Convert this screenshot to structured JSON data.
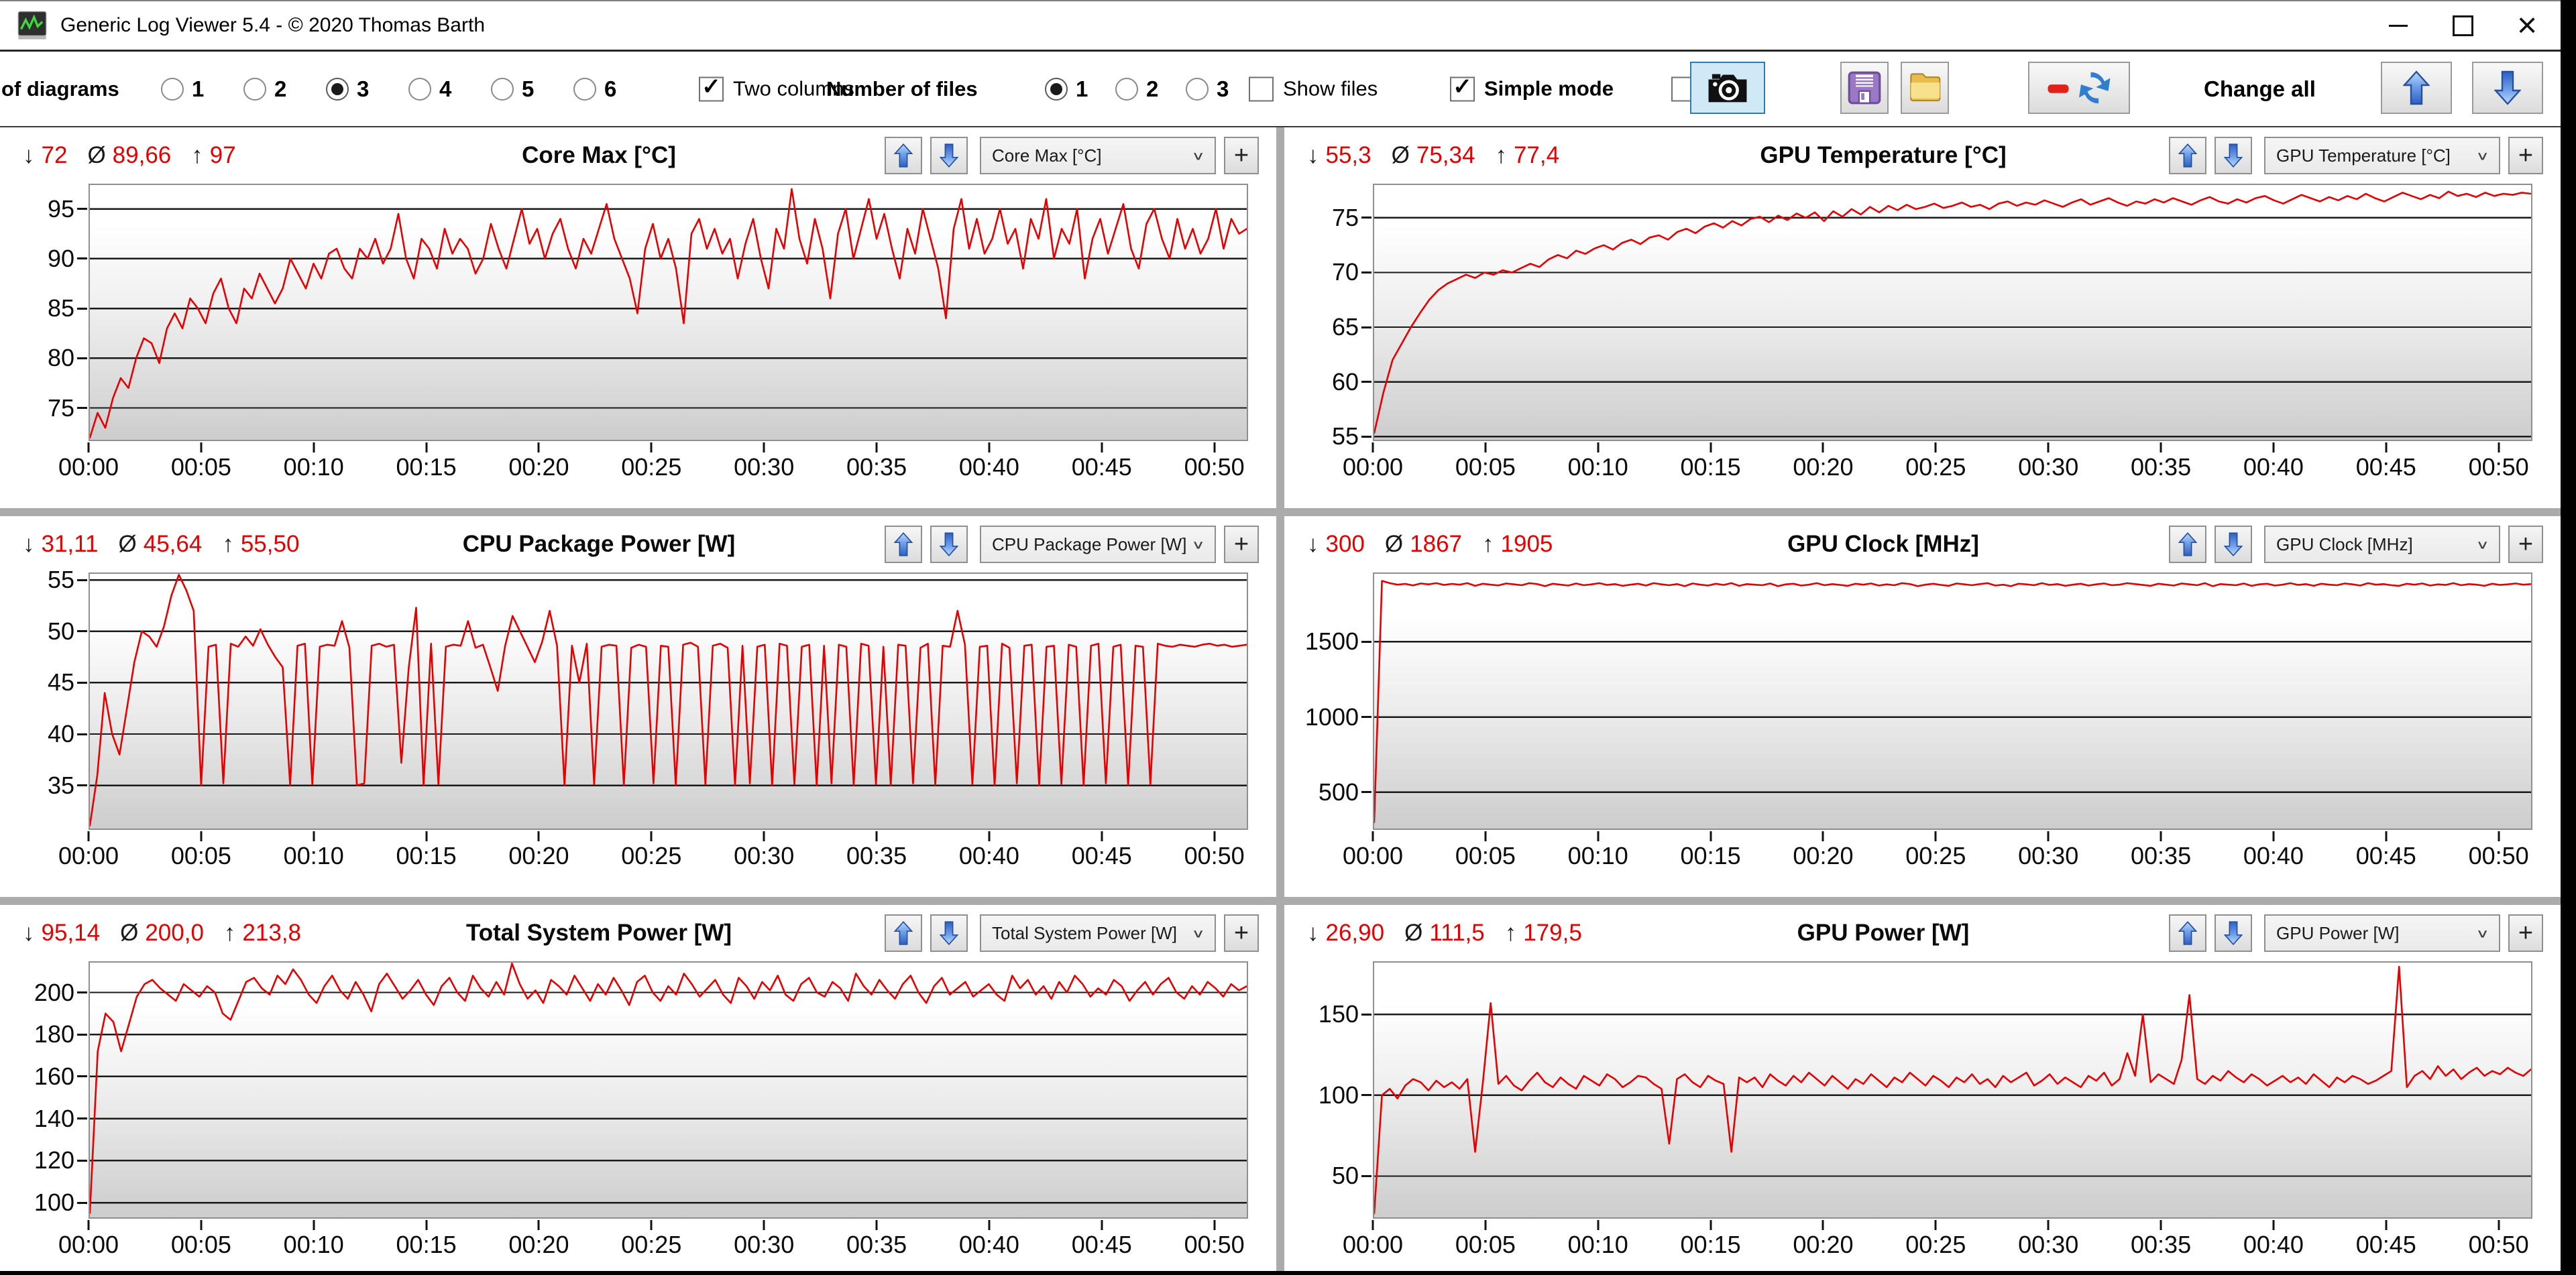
{
  "window": {
    "title": "Generic Log Viewer 5.4 - © 2020 Thomas Barth"
  },
  "glyphs": {
    "min_arrow": "↓",
    "avg": "Ø",
    "max_arrow": "↑",
    "chevron": "∨",
    "plus": "+",
    "check": "✓",
    "close": "×"
  },
  "colors": {
    "series": "#e60000",
    "stats_value": "#e60000",
    "grid": "#1a1a1a",
    "accent_blue": "#3468cf",
    "camera_button_bg": "#cfe9f7",
    "divider": "#ababab"
  },
  "toolbar": {
    "diagrams_label": "of diagrams",
    "diagram_options": [
      "1",
      "2",
      "3",
      "4",
      "5",
      "6"
    ],
    "diagrams_selected": "3",
    "two_columns_label": "Two columns",
    "two_columns_checked": true,
    "files_label": "Number of files",
    "file_options": [
      "1",
      "2",
      "3"
    ],
    "files_selected": "1",
    "show_files_label": "Show files",
    "show_files_checked": false,
    "simple_mode_label": "Simple mode",
    "simple_mode_checked": true,
    "camera_checkbox_checked": false,
    "change_all_label": "Change all"
  },
  "x_axis": {
    "ticks": [
      "00:00",
      "00:05",
      "00:10",
      "00:15",
      "00:20",
      "00:25",
      "00:30",
      "00:35",
      "00:40",
      "00:45",
      "00:50"
    ],
    "tick_minutes": [
      0,
      5,
      10,
      15,
      20,
      25,
      30,
      35,
      40,
      45,
      50
    ],
    "max_minutes": 51.5
  },
  "charts": [
    {
      "id": "core-max",
      "type": "line",
      "title": "Core Max [°C]",
      "channel": "Core Max [°C]",
      "stat_min": "72",
      "stat_avg": "89,66",
      "stat_max": "97",
      "ymin": 71.8,
      "ymax": 97.4,
      "yticks": [
        95,
        90,
        85,
        80,
        75
      ],
      "values": [
        72,
        74.5,
        73,
        76,
        78,
        77,
        80,
        82,
        81.5,
        79.5,
        83,
        84.5,
        83,
        86,
        85,
        83.5,
        86.5,
        88,
        85,
        83.5,
        87,
        86,
        88.5,
        87,
        85.5,
        87,
        90,
        88.5,
        87,
        89.5,
        88,
        90.5,
        91,
        89,
        88,
        91,
        90,
        92,
        89.5,
        91,
        94.5,
        90,
        88,
        92,
        91,
        89,
        93,
        90.5,
        92,
        91,
        88.5,
        90,
        93.5,
        91,
        89,
        92,
        95,
        91.5,
        93,
        90,
        92.5,
        94,
        91,
        89,
        92,
        90.5,
        93,
        95.5,
        92,
        90,
        88,
        84.5,
        91,
        93.5,
        90,
        92,
        89,
        83.5,
        92.5,
        94,
        91,
        93,
        90.5,
        92,
        88,
        91.5,
        94,
        90,
        87,
        93,
        91,
        97,
        92,
        89.5,
        94,
        91,
        86,
        92.5,
        95,
        90,
        93,
        96,
        92,
        94.5,
        91,
        88,
        93,
        90.5,
        95,
        92,
        89,
        84,
        93,
        96,
        91,
        94,
        90.5,
        92,
        95,
        91.5,
        93,
        89,
        94,
        92,
        96,
        90,
        93,
        91.5,
        95,
        88,
        92,
        94,
        90.5,
        93,
        95.5,
        91,
        89,
        93.5,
        95,
        92,
        90,
        94,
        91,
        93,
        90.5,
        92,
        95,
        91,
        94,
        92.5,
        93
      ]
    },
    {
      "id": "gpu-temperature",
      "type": "line",
      "title": "GPU Temperature [°C]",
      "channel": "GPU Temperature [°C]",
      "stat_min": "55,3",
      "stat_avg": "75,34",
      "stat_max": "77,4",
      "ymin": 54.7,
      "ymax": 78.0,
      "yticks": [
        75,
        70,
        65,
        60,
        55
      ],
      "values": [
        55.3,
        59,
        62,
        63.5,
        65,
        66.3,
        67.5,
        68.4,
        69,
        69.4,
        69.8,
        69.5,
        70,
        69.8,
        70.2,
        70,
        70.4,
        70.8,
        70.5,
        71.2,
        71.6,
        71.3,
        72,
        71.7,
        72.2,
        72.5,
        72.1,
        72.7,
        73,
        72.6,
        73.2,
        73.4,
        73,
        73.7,
        74,
        73.6,
        74.2,
        74.5,
        74.1,
        74.7,
        74.3,
        74.9,
        75.1,
        74.6,
        75.2,
        74.8,
        75.4,
        75,
        75.5,
        74.7,
        75.6,
        75.1,
        75.8,
        75.3,
        76,
        75.5,
        76.1,
        75.7,
        76.2,
        75.8,
        76,
        76.3,
        75.9,
        76.1,
        76.4,
        76,
        76.2,
        75.8,
        76.3,
        76.5,
        76.1,
        76.4,
        76.2,
        76.6,
        76.3,
        76,
        76.4,
        76.7,
        76.2,
        76.5,
        76.8,
        76.4,
        76.1,
        76.5,
        76.3,
        76.7,
        76.4,
        76.8,
        76.5,
        76.2,
        76.6,
        76.9,
        76.5,
        76.3,
        76.7,
        76.4,
        76.8,
        77,
        76.6,
        76.3,
        76.7,
        77.1,
        76.8,
        76.5,
        76.9,
        76.6,
        77,
        76.7,
        77.2,
        76.8,
        76.5,
        76.9,
        77.3,
        77,
        76.7,
        77.1,
        76.8,
        77.4,
        77,
        77.2,
        76.9,
        77.3,
        77,
        77.2,
        77.1,
        77.3,
        77.2
      ]
    },
    {
      "id": "cpu-package-power",
      "type": "line",
      "title": "CPU Package Power [W]",
      "channel": "CPU Package Power [W]",
      "stat_min": "31,11",
      "stat_avg": "45,64",
      "stat_max": "55,50",
      "ymin": 30.8,
      "ymax": 55.6,
      "yticks": [
        55,
        50,
        45,
        40,
        35
      ],
      "values": [
        31.1,
        36,
        44,
        40,
        38,
        42.5,
        47,
        50,
        49.5,
        48.5,
        50.5,
        53.5,
        55.5,
        54,
        52,
        35,
        48.5,
        48.7,
        35.2,
        48.8,
        48.5,
        49.5,
        48.6,
        50.2,
        48.7,
        47.5,
        46.5,
        35,
        48.6,
        48.8,
        35.1,
        48.5,
        48.7,
        48.6,
        51,
        48.4,
        35,
        35.2,
        48.6,
        48.8,
        48.5,
        48.7,
        37.2,
        46.5,
        52.3,
        35,
        48.8,
        35.1,
        48.5,
        48.7,
        48.6,
        51,
        48.4,
        48.7,
        46.5,
        44.2,
        48.6,
        51.5,
        50,
        48.5,
        47,
        49,
        52,
        48.6,
        35,
        48.6,
        45,
        48.8,
        35.1,
        48.5,
        48.7,
        48.6,
        35,
        48.4,
        48.7,
        48.5,
        35.2,
        48.6,
        48.5,
        35,
        48.7,
        48.9,
        48.5,
        35.1,
        48.6,
        48.8,
        48.4,
        35,
        48.6,
        35.2,
        48.5,
        48.7,
        35,
        48.8,
        48.6,
        35.1,
        48.5,
        48.7,
        35,
        48.6,
        35.2,
        48.7,
        48.5,
        35,
        48.8,
        48.6,
        35.1,
        48.5,
        35,
        48.7,
        48.6,
        35.2,
        48.4,
        48.8,
        35,
        48.6,
        48.5,
        52,
        48.7,
        35.1,
        48.5,
        48.6,
        35,
        48.8,
        48.4,
        35.2,
        48.6,
        48.7,
        35,
        48.5,
        48.6,
        35.1,
        48.7,
        48.5,
        35,
        48.6,
        48.8,
        35.2,
        48.5,
        48.7,
        35,
        48.6,
        48.5,
        35.1,
        48.8,
        48.6,
        48.5,
        48.7,
        48.6,
        48.5,
        48.7,
        48.8,
        48.6,
        48.7,
        48.5,
        48.6,
        48.7
      ]
    },
    {
      "id": "gpu-clock",
      "type": "line",
      "title": "GPU Clock [MHz]",
      "channel": "GPU Clock [MHz]",
      "stat_min": "300",
      "stat_avg": "1867",
      "stat_max": "1905",
      "ymin": 258,
      "ymax": 1952,
      "yticks": [
        1500,
        1000,
        500
      ],
      "values": [
        300,
        1905,
        1890,
        1880,
        1885,
        1875,
        1888,
        1882,
        1890,
        1878,
        1885,
        1880,
        1890,
        1872,
        1886,
        1880,
        1875,
        1888,
        1882,
        1876,
        1890,
        1884,
        1870,
        1886,
        1880,
        1874,
        1888,
        1876,
        1882,
        1890,
        1878,
        1884,
        1872,
        1880,
        1886,
        1874,
        1890,
        1882,
        1876,
        1884,
        1870,
        1888,
        1880,
        1874,
        1886,
        1878,
        1890,
        1872,
        1884,
        1880,
        1876,
        1888,
        1870,
        1882,
        1886,
        1874,
        1880,
        1890,
        1876,
        1884,
        1878,
        1872,
        1886,
        1880,
        1888,
        1874,
        1882,
        1876,
        1890,
        1884,
        1870,
        1880,
        1886,
        1878,
        1872,
        1888,
        1882,
        1876,
        1884,
        1890,
        1874,
        1880,
        1870,
        1886,
        1882,
        1876,
        1890,
        1878,
        1884,
        1872,
        1880,
        1886,
        1874,
        1882,
        1888,
        1876,
        1880,
        1890,
        1884,
        1878,
        1872,
        1886,
        1880,
        1874,
        1888,
        1882,
        1876,
        1890,
        1870,
        1884,
        1880,
        1876,
        1888,
        1872,
        1882,
        1886,
        1874,
        1880,
        1890,
        1878,
        1884,
        1872,
        1886,
        1880,
        1876,
        1888,
        1882,
        1874,
        1890,
        1880,
        1884,
        1876,
        1872,
        1886,
        1880,
        1888,
        1874,
        1882,
        1878,
        1890,
        1876,
        1884,
        1880,
        1872,
        1886,
        1878,
        1882,
        1888,
        1880,
        1884
      ]
    },
    {
      "id": "total-system-power",
      "type": "line",
      "title": "Total System Power [W]",
      "channel": "Total System Power [W]",
      "stat_min": "95,14",
      "stat_avg": "200,0",
      "stat_max": "213,8",
      "ymin": 93,
      "ymax": 214.2,
      "yticks": [
        200,
        180,
        160,
        140,
        120,
        100
      ],
      "values": [
        95.1,
        172,
        190,
        186,
        172,
        185,
        198,
        204,
        206,
        202,
        199,
        196,
        204,
        201,
        198,
        203,
        200,
        190,
        187,
        196,
        205,
        207,
        202,
        199,
        208,
        204,
        211,
        206,
        199,
        195,
        203,
        208,
        201,
        197,
        205,
        199,
        191,
        204,
        209,
        203,
        197,
        201,
        206,
        199,
        194,
        203,
        207,
        200,
        196,
        208,
        202,
        198,
        205,
        199,
        213.8,
        204,
        197,
        201,
        195,
        206,
        203,
        199,
        208,
        202,
        196,
        204,
        199,
        207,
        201,
        194,
        205,
        208,
        200,
        196,
        203,
        199,
        209,
        204,
        198,
        202,
        206,
        199,
        195,
        207,
        203,
        197,
        205,
        201,
        208,
        199,
        196,
        204,
        207,
        200,
        198,
        205,
        202,
        196,
        209,
        203,
        199,
        206,
        201,
        197,
        204,
        208,
        200,
        195,
        203,
        207,
        199,
        202,
        205,
        198,
        201,
        204,
        199,
        196,
        208,
        202,
        206,
        199,
        203,
        197,
        205,
        200,
        208,
        204,
        198,
        202,
        199,
        206,
        203,
        196,
        201,
        205,
        199,
        204,
        207,
        200,
        197,
        203,
        199,
        205,
        202,
        198,
        204,
        201,
        203
      ]
    },
    {
      "id": "gpu-power",
      "type": "line",
      "title": "GPU Power [W]",
      "channel": "GPU Power [W]",
      "stat_min": "26,90",
      "stat_avg": "111,5",
      "stat_max": "179,5",
      "ymin": 24.5,
      "ymax": 182,
      "yticks": [
        150,
        100,
        50
      ],
      "values": [
        26.9,
        100,
        104,
        98,
        106,
        110,
        108,
        103,
        109,
        105,
        108,
        104,
        110,
        65,
        108,
        157,
        107,
        112,
        106,
        103,
        109,
        114,
        108,
        105,
        111,
        107,
        104,
        112,
        109,
        106,
        113,
        110,
        105,
        108,
        112,
        111,
        107,
        104,
        70,
        110,
        113,
        108,
        105,
        112,
        109,
        107,
        65,
        111,
        108,
        111,
        105,
        113,
        109,
        106,
        112,
        108,
        114,
        110,
        106,
        112,
        108,
        104,
        110,
        107,
        113,
        109,
        105,
        111,
        108,
        114,
        110,
        106,
        112,
        109,
        105,
        111,
        108,
        113,
        107,
        110,
        105,
        112,
        108,
        111,
        114,
        106,
        109,
        113,
        107,
        111,
        108,
        105,
        112,
        109,
        114,
        106,
        110,
        126,
        112,
        150,
        108,
        113,
        110,
        107,
        122,
        162,
        110,
        107,
        112,
        109,
        115,
        111,
        108,
        113,
        110,
        106,
        109,
        112,
        108,
        111,
        107,
        113,
        109,
        105,
        111,
        108,
        112,
        110,
        107,
        109,
        112,
        115,
        179.5,
        105,
        112,
        115,
        110,
        118,
        112,
        116,
        110,
        114,
        117,
        112,
        115,
        113,
        117,
        114,
        112,
        116
      ]
    }
  ]
}
